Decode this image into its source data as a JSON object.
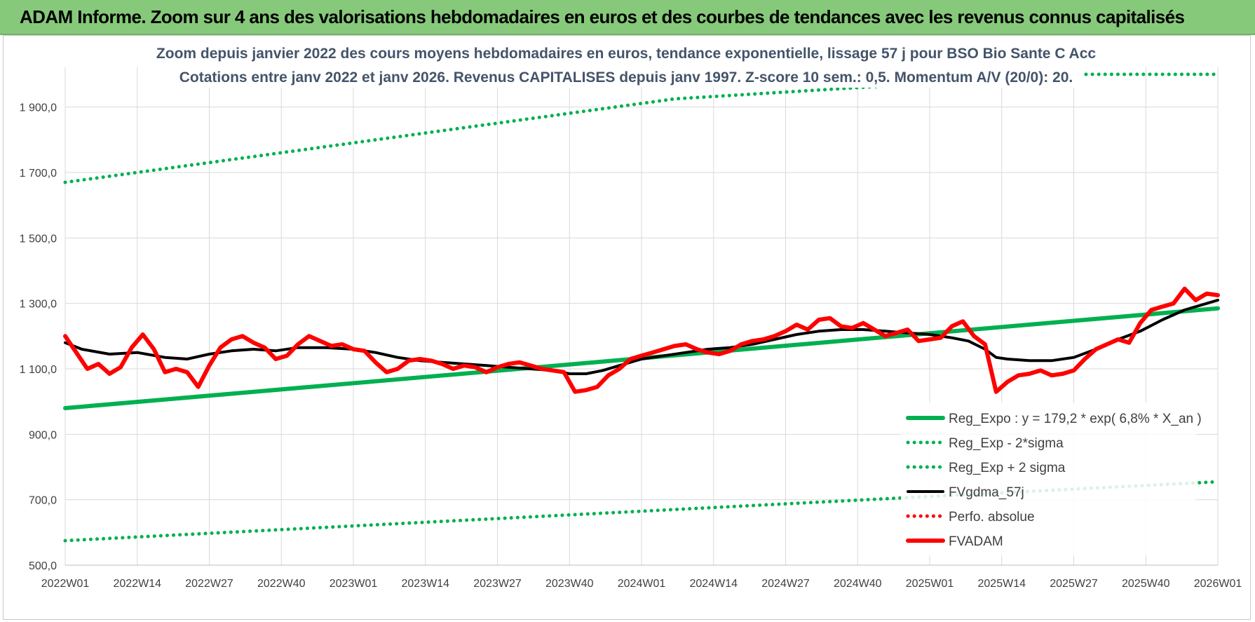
{
  "header": {
    "title": "ADAM Informe. Zoom sur 4 ans des valorisations hebdomadaires en euros et des courbes de tendances avec les revenus connus capitalisés"
  },
  "colors": {
    "header_bg": "#86c97a",
    "trend": "#00b050",
    "band": "#00b050",
    "sma": "#000000",
    "price": "#ff0000",
    "perf": "#ff0000",
    "subtitle": "#44546a"
  },
  "chart_data": {
    "type": "line",
    "title_line1": "Zoom depuis janvier 2022 des cours moyens hebdomadaires en euros, tendance exponentielle, lissage 57 j pour BSO Bio Sante C Acc",
    "title_line2": "Cotations entre janv 2022 et janv 2026. Revenus CAPITALISES depuis janv 1997. Z-score 10 sem.: 0,5. Momentum A/V (20/0): 20.",
    "ylim": [
      500,
      2000
    ],
    "y_ticks": [
      "500,0",
      "700,0",
      "900,0",
      "1 100,0",
      "1 300,0",
      "1 500,0",
      "1 700,0",
      "1 900,0"
    ],
    "y_tick_values": [
      500,
      700,
      900,
      1100,
      1300,
      1500,
      1700,
      1900
    ],
    "x_ticks": [
      "2022W01",
      "2022W14",
      "2022W27",
      "2022W40",
      "2023W01",
      "2023W14",
      "2023W27",
      "2023W40",
      "2024W01",
      "2024W14",
      "2024W27",
      "2024W40",
      "2025W01",
      "2025W14",
      "2025W27",
      "2025W40",
      "2026W01"
    ],
    "x_tick_weeks": [
      0,
      13,
      26,
      39,
      52,
      65,
      78,
      91,
      104,
      117,
      130,
      143,
      156,
      169,
      182,
      195,
      208
    ],
    "grid": true,
    "legend_position": "bottom-right",
    "series": [
      {
        "name": "Reg_Expo : y = 179,2 * exp( 6,8% *  X_an )",
        "style": "solid-thick",
        "color": "#00b050",
        "x": [
          0,
          208
        ],
        "values": [
          980,
          1285
        ]
      },
      {
        "name": "Reg_Exp - 2*sigma",
        "style": "dotted",
        "color": "#00b050",
        "x": [
          0,
          208
        ],
        "values": [
          575,
          755
        ]
      },
      {
        "name": "Reg_Exp + 2 sigma",
        "style": "dotted",
        "color": "#00b050",
        "x": [
          0,
          110,
          182,
          208
        ],
        "values": [
          1670,
          1925,
          2000,
          2000
        ]
      },
      {
        "name": "FVgdma_57j",
        "style": "solid",
        "color": "#000000",
        "x": [
          0,
          3,
          8,
          13,
          18,
          22,
          26,
          30,
          34,
          38,
          42,
          47,
          52,
          56,
          60,
          64,
          68,
          72,
          76,
          80,
          84,
          88,
          91,
          94,
          97,
          100,
          104,
          108,
          112,
          116,
          120,
          124,
          128,
          132,
          136,
          140,
          144,
          148,
          152,
          156,
          160,
          163,
          166,
          168,
          170,
          174,
          178,
          182,
          186,
          190,
          194,
          198,
          202,
          206,
          208
        ],
        "values": [
          1180,
          1160,
          1145,
          1150,
          1135,
          1130,
          1145,
          1155,
          1160,
          1155,
          1165,
          1165,
          1160,
          1150,
          1135,
          1125,
          1120,
          1115,
          1110,
          1105,
          1100,
          1095,
          1085,
          1085,
          1095,
          1110,
          1130,
          1140,
          1150,
          1160,
          1165,
          1175,
          1190,
          1205,
          1215,
          1220,
          1220,
          1215,
          1210,
          1205,
          1195,
          1185,
          1160,
          1135,
          1130,
          1125,
          1125,
          1135,
          1160,
          1190,
          1215,
          1250,
          1280,
          1300,
          1310
        ]
      },
      {
        "name": "Perfo. absolue",
        "style": "dotted",
        "color": "#ff0000",
        "x": [],
        "values": []
      },
      {
        "name": "FVADAM",
        "style": "solid-thick",
        "color": "#ff0000",
        "x": [
          0,
          2,
          4,
          6,
          8,
          10,
          12,
          14,
          16,
          18,
          20,
          22,
          24,
          26,
          28,
          30,
          32,
          34,
          36,
          38,
          40,
          42,
          44,
          46,
          48,
          50,
          52,
          54,
          56,
          58,
          60,
          62,
          64,
          66,
          68,
          70,
          72,
          74,
          76,
          78,
          80,
          82,
          84,
          86,
          88,
          90,
          92,
          94,
          96,
          98,
          100,
          102,
          104,
          106,
          108,
          110,
          112,
          114,
          116,
          118,
          120,
          122,
          124,
          126,
          128,
          130,
          132,
          134,
          136,
          138,
          140,
          142,
          144,
          146,
          148,
          150,
          152,
          154,
          156,
          158,
          160,
          162,
          164,
          166,
          168,
          170,
          172,
          174,
          176,
          178,
          180,
          182,
          184,
          186,
          188,
          190,
          192,
          194,
          196,
          198,
          200,
          202,
          204,
          206,
          208
        ],
        "values": [
          1200,
          1150,
          1100,
          1115,
          1085,
          1105,
          1165,
          1205,
          1160,
          1090,
          1100,
          1090,
          1045,
          1110,
          1165,
          1190,
          1200,
          1180,
          1165,
          1130,
          1140,
          1175,
          1200,
          1185,
          1170,
          1175,
          1160,
          1155,
          1120,
          1090,
          1100,
          1125,
          1130,
          1125,
          1115,
          1100,
          1110,
          1105,
          1090,
          1105,
          1115,
          1120,
          1110,
          1100,
          1095,
          1090,
          1030,
          1035,
          1045,
          1080,
          1100,
          1130,
          1140,
          1150,
          1160,
          1170,
          1175,
          1160,
          1150,
          1145,
          1155,
          1175,
          1185,
          1190,
          1200,
          1215,
          1235,
          1220,
          1250,
          1255,
          1230,
          1225,
          1240,
          1220,
          1200,
          1210,
          1220,
          1185,
          1190,
          1195,
          1230,
          1245,
          1200,
          1175,
          1030,
          1060,
          1080,
          1085,
          1095,
          1080,
          1085,
          1095,
          1130,
          1160,
          1175,
          1190,
          1180,
          1240,
          1280,
          1290,
          1300,
          1345,
          1310,
          1330,
          1325
        ]
      }
    ]
  }
}
